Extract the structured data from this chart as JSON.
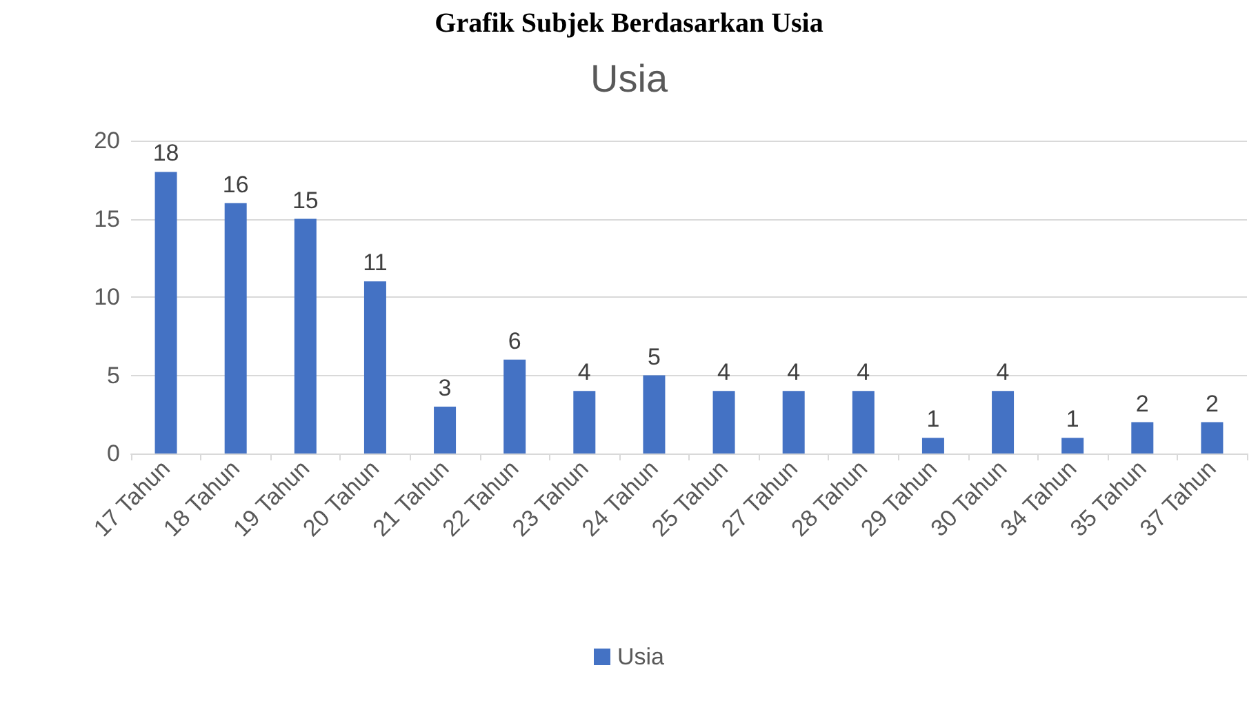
{
  "chart_data": {
    "type": "bar",
    "title": "Grafik Subjek Berdasarkan Usia",
    "subtitle": "Usia",
    "categories": [
      "17 Tahun",
      "18 Tahun",
      "19 Tahun",
      "20 Tahun",
      "21 Tahun",
      "22 Tahun",
      "23 Tahun",
      "24 Tahun",
      "25 Tahun",
      "27 Tahun",
      "28 Tahun",
      "29 Tahun",
      "30 Tahun",
      "34 Tahun",
      "35 Tahun",
      "37 Tahun"
    ],
    "series": [
      {
        "name": "Usia",
        "color": "#4472c4",
        "values": [
          18,
          16,
          15,
          11,
          3,
          6,
          4,
          5,
          4,
          4,
          4,
          1,
          4,
          1,
          2,
          2
        ]
      }
    ],
    "ylim": [
      0,
      20
    ],
    "yticks": [
      0,
      5,
      10,
      15,
      20
    ],
    "grid": "y",
    "legend": "bottom",
    "data_labels": true
  }
}
